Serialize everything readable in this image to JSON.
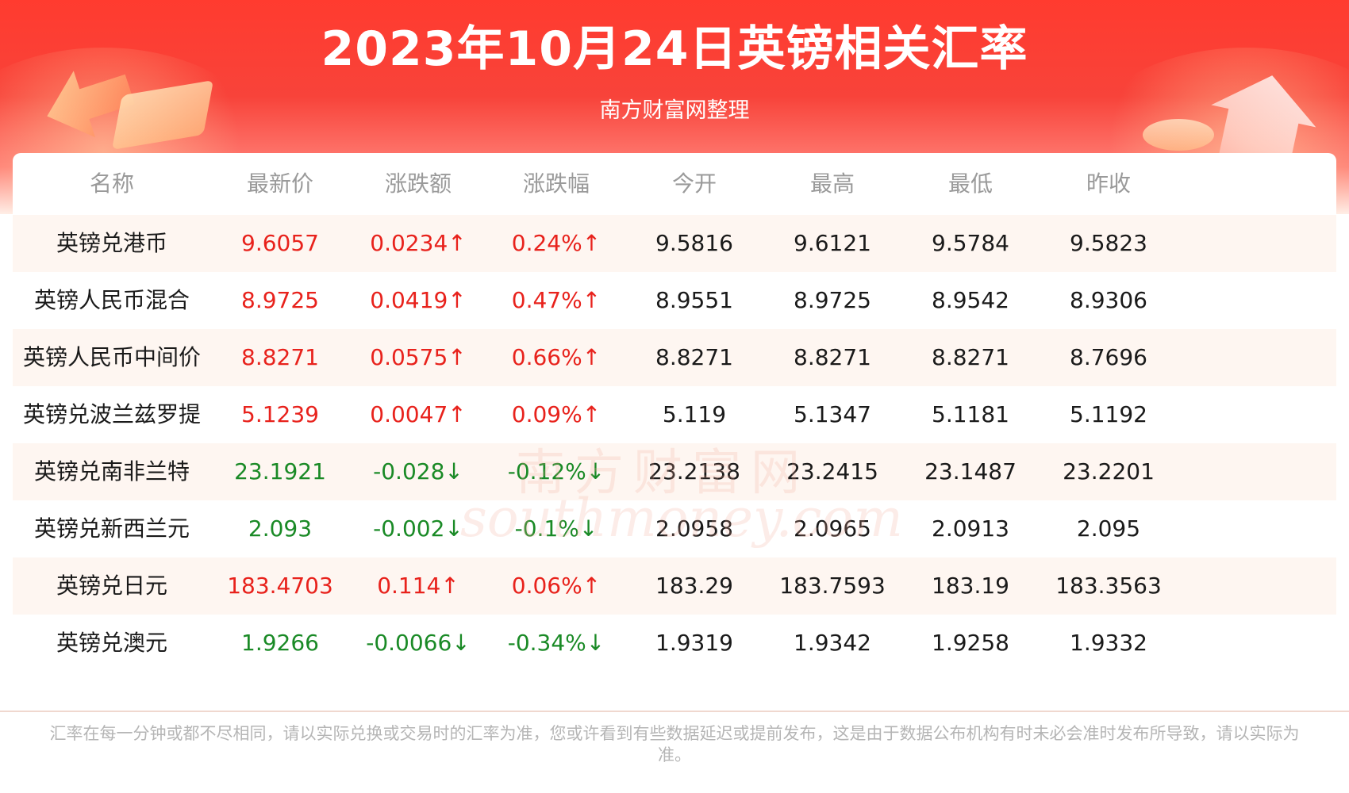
{
  "header": {
    "title": "2023年10月24日英镑相关汇率",
    "subtitle": "南方财富网整理"
  },
  "colors": {
    "up": "#e8221c",
    "down": "#1a8a26",
    "banner": "#f8433a"
  },
  "table": {
    "columns": [
      "名称",
      "最新价",
      "涨跌额",
      "涨跌幅",
      "今开",
      "最高",
      "最低",
      "昨收"
    ],
    "rows": [
      {
        "name": "英镑兑港币",
        "dir": "up",
        "latest": "9.6057",
        "change": "0.0234↑",
        "pct": "0.24%↑",
        "open": "9.5816",
        "high": "9.6121",
        "low": "9.5784",
        "prev": "9.5823"
      },
      {
        "name": "英镑人民币混合",
        "dir": "up",
        "latest": "8.9725",
        "change": "0.0419↑",
        "pct": "0.47%↑",
        "open": "8.9551",
        "high": "8.9725",
        "low": "8.9542",
        "prev": "8.9306"
      },
      {
        "name": "英镑人民币中间价",
        "dir": "up",
        "latest": "8.8271",
        "change": "0.0575↑",
        "pct": "0.66%↑",
        "open": "8.8271",
        "high": "8.8271",
        "low": "8.8271",
        "prev": "8.7696"
      },
      {
        "name": "英镑兑波兰兹罗提",
        "dir": "up",
        "latest": "5.1239",
        "change": "0.0047↑",
        "pct": "0.09%↑",
        "open": "5.119",
        "high": "5.1347",
        "low": "5.1181",
        "prev": "5.1192"
      },
      {
        "name": "英镑兑南非兰特",
        "dir": "down",
        "latest": "23.1921",
        "change": "-0.028↓",
        "pct": "-0.12%↓",
        "open": "23.2138",
        "high": "23.2415",
        "low": "23.1487",
        "prev": "23.2201"
      },
      {
        "name": "英镑兑新西兰元",
        "dir": "down",
        "latest": "2.093",
        "change": "-0.002↓",
        "pct": "-0.1%↓",
        "open": "2.0958",
        "high": "2.0965",
        "low": "2.0913",
        "prev": "2.095"
      },
      {
        "name": "英镑兑日元",
        "dir": "up",
        "latest": "183.4703",
        "change": "0.114↑",
        "pct": "0.06%↑",
        "open": "183.29",
        "high": "183.7593",
        "low": "183.19",
        "prev": "183.3563"
      },
      {
        "name": "英镑兑澳元",
        "dir": "down",
        "latest": "1.9266",
        "change": "-0.0066↓",
        "pct": "-0.34%↓",
        "open": "1.9319",
        "high": "1.9342",
        "low": "1.9258",
        "prev": "1.9332"
      }
    ]
  },
  "watermark": {
    "cn": "南方财富网",
    "en": "southmoney.com"
  },
  "footnote": "汇率在每一分钟或都不尽相同，请以实际兑换或交易时的汇率为准，您或许看到有些数据延迟或提前发布，这是由于数据公布机构有时未必会准时发布所导致，请以实际为准。"
}
